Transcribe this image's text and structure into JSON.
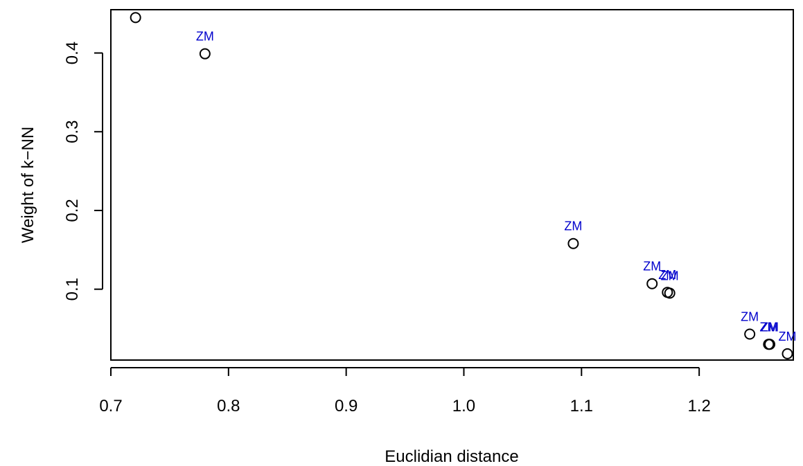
{
  "chart_data": {
    "type": "scatter",
    "title": "",
    "xlabel": "Euclidian distance",
    "ylabel": "Weight of k−NN",
    "xlim": [
      0.7,
      1.28
    ],
    "ylim": [
      0.01,
      0.455
    ],
    "x_ticks": [
      0.7,
      0.8,
      0.9,
      1.0,
      1.1,
      1.2
    ],
    "x_tick_labels": [
      "0.7",
      "0.8",
      "0.9",
      "1.0",
      "1.1",
      "1.2"
    ],
    "y_ticks": [
      0.1,
      0.2,
      0.3,
      0.4
    ],
    "y_tick_labels": [
      "0.1",
      "0.2",
      "0.3",
      "0.4"
    ],
    "grid": false,
    "marker": "open-circle",
    "point_color": "#000000",
    "label_color": "#0000CC",
    "points": [
      {
        "x": 0.721,
        "y": 0.445,
        "label": ""
      },
      {
        "x": 0.78,
        "y": 0.399,
        "label": "ZM"
      },
      {
        "x": 1.093,
        "y": 0.158,
        "label": "ZM"
      },
      {
        "x": 1.16,
        "y": 0.107,
        "label": "ZM"
      },
      {
        "x": 1.173,
        "y": 0.096,
        "label": "ZM"
      },
      {
        "x": 1.175,
        "y": 0.095,
        "label": "ZM"
      },
      {
        "x": 1.243,
        "y": 0.043,
        "label": "ZM"
      },
      {
        "x": 1.259,
        "y": 0.03,
        "label": "ZM"
      },
      {
        "x": 1.26,
        "y": 0.03,
        "label": "ZM"
      },
      {
        "x": 1.275,
        "y": 0.018,
        "label": "ZM"
      }
    ]
  }
}
